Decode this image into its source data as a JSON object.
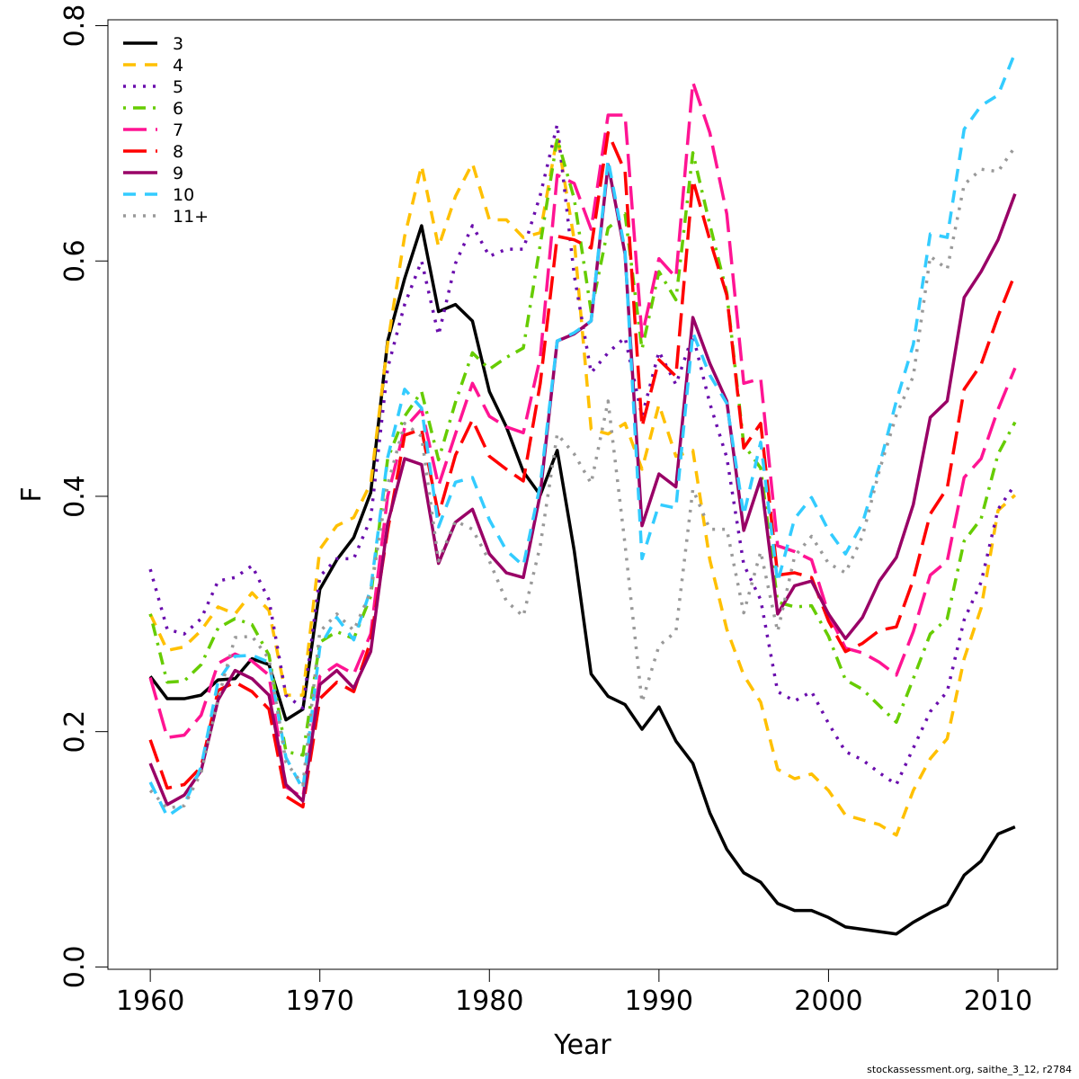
{
  "footnote": "stockassessment.org, saithe_3_12, r2784",
  "chart_data": {
    "type": "line",
    "xlabel": "Year",
    "ylabel": "F",
    "xlim": [
      1957.5,
      2013.5
    ],
    "ylim": [
      -0.002,
      0.805
    ],
    "xticks": [
      1960,
      1970,
      1980,
      1990,
      2000,
      2010
    ],
    "yticks": [
      0.0,
      0.2,
      0.4,
      0.6,
      0.8
    ],
    "ytick_labels": [
      "0.0",
      "0.2",
      "0.4",
      "0.6",
      "0.8"
    ],
    "legend_position": "top-left",
    "grid": false,
    "x": [
      1960,
      1961,
      1962,
      1963,
      1964,
      1965,
      1966,
      1967,
      1968,
      1969,
      1970,
      1971,
      1972,
      1973,
      1974,
      1975,
      1976,
      1977,
      1978,
      1979,
      1980,
      1981,
      1982,
      1983,
      1984,
      1985,
      1986,
      1987,
      1988,
      1989,
      1990,
      1991,
      1992,
      1993,
      1994,
      1995,
      1996,
      1997,
      1998,
      1999,
      2000,
      2001,
      2002,
      2003,
      2004,
      2005,
      2006,
      2007,
      2008,
      2009,
      2010,
      2011
    ],
    "series": [
      {
        "name": "3",
        "color": "#000000",
        "dash": "solid",
        "values": [
          0.247,
          0.228,
          0.228,
          0.231,
          0.244,
          0.245,
          0.262,
          0.257,
          0.21,
          0.219,
          0.321,
          0.346,
          0.365,
          0.403,
          0.532,
          0.585,
          0.63,
          0.557,
          0.563,
          0.549,
          0.489,
          0.459,
          0.421,
          0.401,
          0.439,
          0.354,
          0.249,
          0.23,
          0.223,
          0.202,
          0.221,
          0.192,
          0.173,
          0.131,
          0.1,
          0.08,
          0.072,
          0.054,
          0.048,
          0.048,
          0.042,
          0.034,
          0.032,
          0.03,
          0.028,
          0.038,
          0.046,
          0.053,
          0.078,
          0.09,
          0.113,
          0.119
        ]
      },
      {
        "name": "4",
        "color": "#FFC000",
        "dash": "dash",
        "values": [
          0.3,
          0.269,
          0.272,
          0.286,
          0.306,
          0.3,
          0.318,
          0.303,
          0.231,
          0.231,
          0.355,
          0.375,
          0.382,
          0.411,
          0.53,
          0.621,
          0.681,
          0.612,
          0.655,
          0.683,
          0.635,
          0.635,
          0.62,
          0.624,
          0.706,
          0.618,
          0.457,
          0.453,
          0.462,
          0.423,
          0.478,
          0.434,
          0.439,
          0.346,
          0.287,
          0.248,
          0.225,
          0.168,
          0.16,
          0.164,
          0.15,
          0.129,
          0.125,
          0.121,
          0.112,
          0.15,
          0.177,
          0.194,
          0.262,
          0.305,
          0.388,
          0.401
        ]
      },
      {
        "name": "5",
        "color": "#6A0DAD",
        "dash": "dot",
        "values": [
          0.338,
          0.287,
          0.283,
          0.296,
          0.328,
          0.331,
          0.341,
          0.312,
          0.231,
          0.22,
          0.332,
          0.347,
          0.347,
          0.381,
          0.509,
          0.563,
          0.6,
          0.537,
          0.598,
          0.63,
          0.604,
          0.61,
          0.61,
          0.656,
          0.716,
          0.588,
          0.505,
          0.522,
          0.535,
          0.468,
          0.523,
          0.495,
          0.537,
          0.479,
          0.433,
          0.342,
          0.312,
          0.234,
          0.226,
          0.234,
          0.207,
          0.183,
          0.176,
          0.165,
          0.155,
          0.186,
          0.217,
          0.234,
          0.295,
          0.327,
          0.389,
          0.41
        ]
      },
      {
        "name": "6",
        "color": "#66CC00",
        "dash": "dashdot",
        "values": [
          0.3,
          0.242,
          0.243,
          0.257,
          0.288,
          0.296,
          0.291,
          0.265,
          0.183,
          0.18,
          0.276,
          0.285,
          0.279,
          0.315,
          0.432,
          0.468,
          0.489,
          0.431,
          0.48,
          0.522,
          0.508,
          0.518,
          0.526,
          0.614,
          0.704,
          0.653,
          0.557,
          0.628,
          0.64,
          0.525,
          0.591,
          0.567,
          0.692,
          0.631,
          0.573,
          0.444,
          0.424,
          0.31,
          0.306,
          0.307,
          0.281,
          0.244,
          0.236,
          0.222,
          0.208,
          0.245,
          0.283,
          0.296,
          0.362,
          0.381,
          0.436,
          0.463
        ]
      },
      {
        "name": "7",
        "color": "#FF1493",
        "dash": "longdash",
        "values": [
          0.246,
          0.195,
          0.197,
          0.214,
          0.258,
          0.266,
          0.26,
          0.248,
          0.153,
          0.144,
          0.247,
          0.257,
          0.249,
          0.283,
          0.4,
          0.458,
          0.474,
          0.409,
          0.453,
          0.496,
          0.468,
          0.459,
          0.454,
          0.518,
          0.673,
          0.666,
          0.627,
          0.724,
          0.724,
          0.536,
          0.602,
          0.586,
          0.752,
          0.709,
          0.64,
          0.496,
          0.5,
          0.358,
          0.353,
          0.346,
          0.3,
          0.271,
          0.267,
          0.259,
          0.248,
          0.285,
          0.333,
          0.345,
          0.416,
          0.432,
          0.474,
          0.509
        ]
      },
      {
        "name": "8",
        "color": "#FF0000",
        "dash": "longdash",
        "values": [
          0.193,
          0.152,
          0.155,
          0.17,
          0.235,
          0.242,
          0.234,
          0.219,
          0.145,
          0.136,
          0.228,
          0.242,
          0.234,
          0.277,
          0.371,
          0.452,
          0.457,
          0.384,
          0.435,
          0.465,
          0.434,
          0.423,
          0.413,
          0.496,
          0.621,
          0.618,
          0.611,
          0.709,
          0.676,
          0.459,
          0.516,
          0.502,
          0.669,
          0.618,
          0.571,
          0.441,
          0.462,
          0.333,
          0.335,
          0.331,
          0.294,
          0.268,
          0.275,
          0.286,
          0.289,
          0.329,
          0.385,
          0.407,
          0.491,
          0.512,
          0.553,
          0.589
        ]
      },
      {
        "name": "9",
        "color": "#990066",
        "dash": "solid",
        "values": [
          0.173,
          0.138,
          0.146,
          0.167,
          0.227,
          0.252,
          0.245,
          0.231,
          0.155,
          0.141,
          0.24,
          0.252,
          0.237,
          0.268,
          0.377,
          0.432,
          0.427,
          0.343,
          0.378,
          0.389,
          0.351,
          0.335,
          0.331,
          0.402,
          0.532,
          0.538,
          0.549,
          0.682,
          0.606,
          0.375,
          0.419,
          0.408,
          0.552,
          0.513,
          0.481,
          0.371,
          0.415,
          0.3,
          0.324,
          0.328,
          0.3,
          0.279,
          0.297,
          0.328,
          0.348,
          0.393,
          0.467,
          0.481,
          0.569,
          0.591,
          0.618,
          0.657
        ]
      },
      {
        "name": "10",
        "color": "#33CCFF",
        "dash": "dash",
        "values": [
          0.157,
          0.128,
          0.138,
          0.17,
          0.243,
          0.264,
          0.265,
          0.259,
          0.178,
          0.151,
          0.272,
          0.297,
          0.278,
          0.321,
          0.433,
          0.491,
          0.475,
          0.374,
          0.412,
          0.416,
          0.38,
          0.354,
          0.341,
          0.41,
          0.532,
          0.539,
          0.549,
          0.686,
          0.609,
          0.347,
          0.393,
          0.39,
          0.539,
          0.503,
          0.479,
          0.384,
          0.446,
          0.327,
          0.381,
          0.399,
          0.371,
          0.351,
          0.377,
          0.426,
          0.481,
          0.529,
          0.623,
          0.62,
          0.712,
          0.732,
          0.741,
          0.777
        ]
      },
      {
        "name": "11+",
        "color": "#999999",
        "dash": "dot",
        "values": [
          0.15,
          0.135,
          0.137,
          0.165,
          0.228,
          0.28,
          0.281,
          0.262,
          0.174,
          0.155,
          0.285,
          0.3,
          0.286,
          0.319,
          0.41,
          0.462,
          0.451,
          0.345,
          0.379,
          0.372,
          0.345,
          0.311,
          0.298,
          0.358,
          0.453,
          0.436,
          0.411,
          0.481,
          0.359,
          0.225,
          0.273,
          0.285,
          0.406,
          0.372,
          0.372,
          0.301,
          0.353,
          0.285,
          0.349,
          0.366,
          0.343,
          0.335,
          0.366,
          0.422,
          0.469,
          0.502,
          0.604,
          0.593,
          0.665,
          0.678,
          0.676,
          0.697
        ]
      }
    ]
  }
}
